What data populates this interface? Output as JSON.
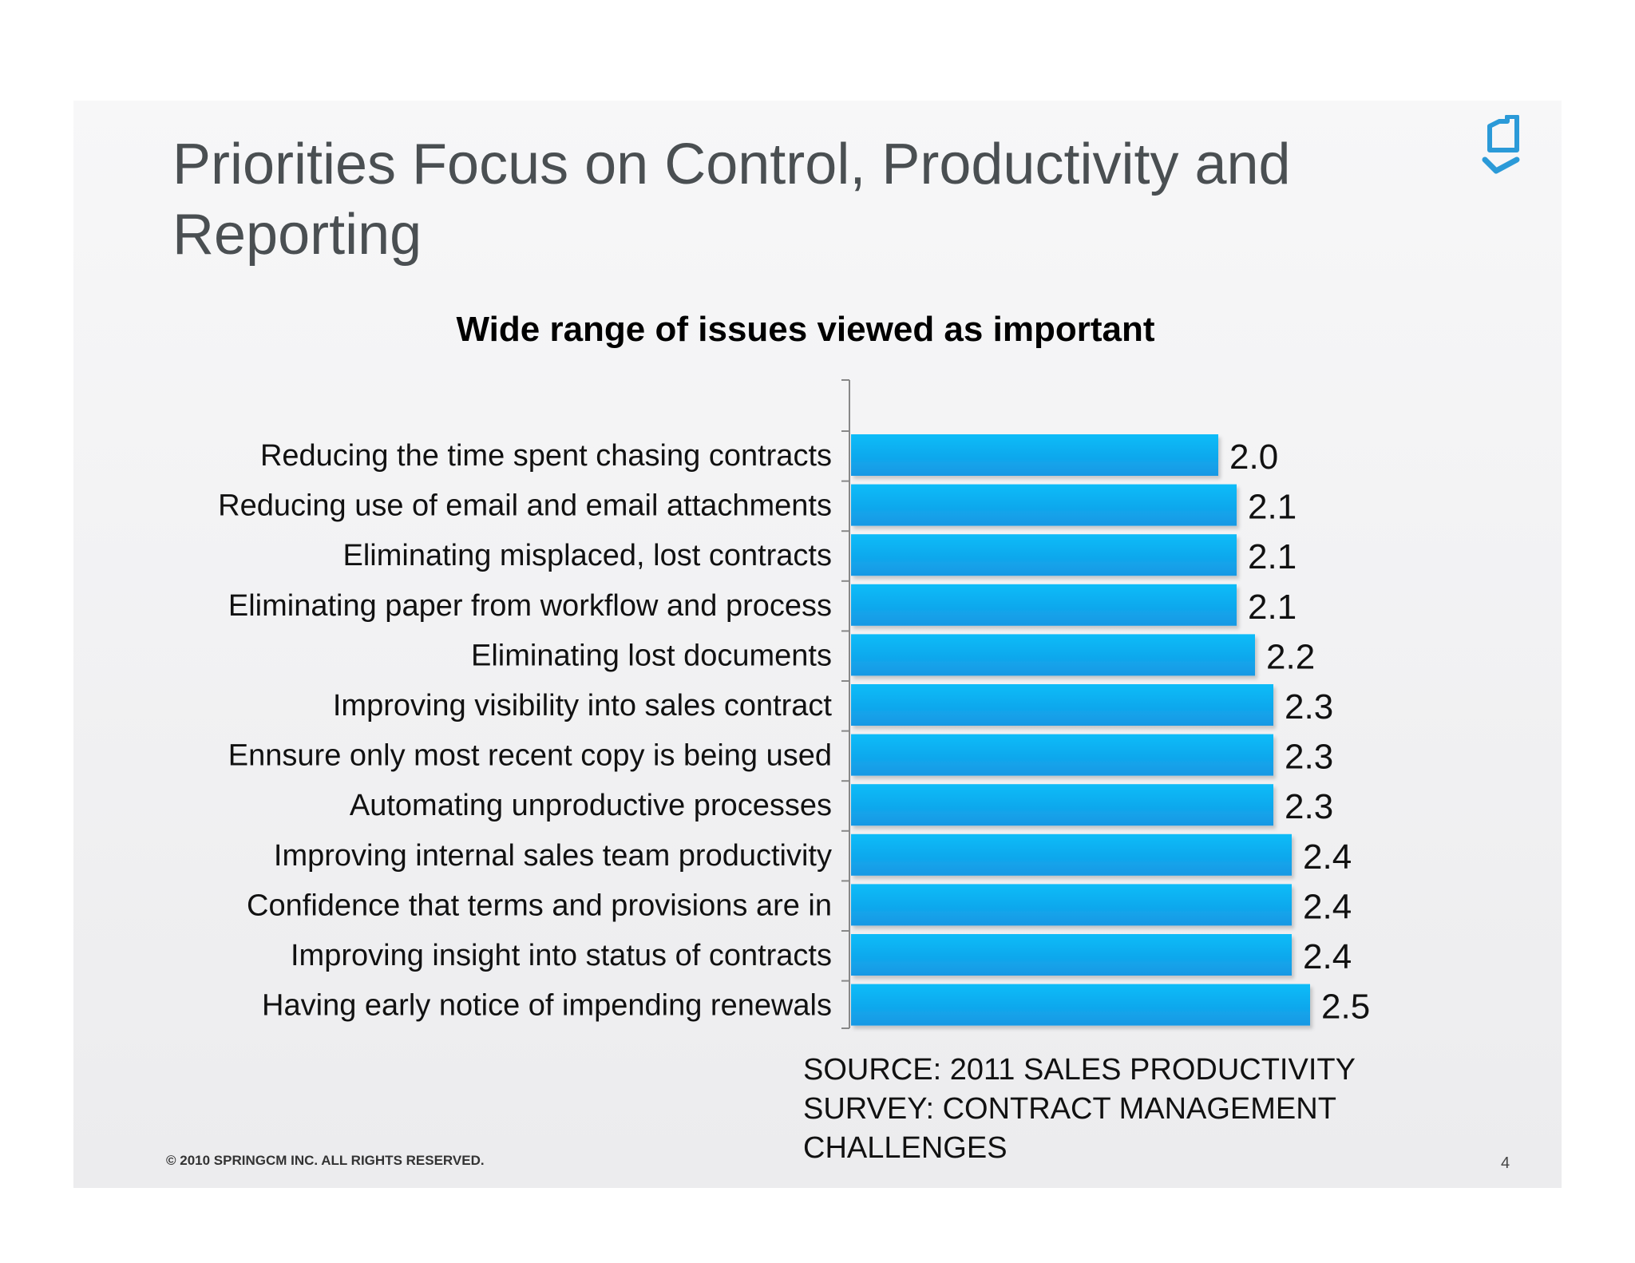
{
  "slide": {
    "title": "Priorities Focus on Control, Productivity and Reporting",
    "source": "SOURCE: 2011 SALES PRODUCTIVITY SURVEY: CONTRACT MANAGEMENT CHALLENGES",
    "copyright": "© 2010 SPRINGCM INC. ALL RIGHTS RESERVED.",
    "page_number": "4",
    "logo_icon": "springcm-logo-icon",
    "accent_color": "#2b9ad8"
  },
  "chart_data": {
    "type": "bar",
    "orientation": "horizontal",
    "title": "Wide range of issues viewed as important",
    "categories": [
      "Reducing the time spent chasing contracts",
      "Reducing use of email and email attachments",
      "Eliminating misplaced, lost contracts",
      "Eliminating paper from workflow and process",
      "Eliminating lost documents",
      "Improving visibility into sales contract",
      "Ennsure only most recent copy is being used",
      "Automating unproductive processes",
      "Improving internal sales team productivity",
      "Confidence that terms and provisions are in",
      "Improving insight into status of  contracts",
      "Having early notice of impending renewals"
    ],
    "values": [
      2.0,
      2.1,
      2.1,
      2.1,
      2.2,
      2.3,
      2.3,
      2.3,
      2.4,
      2.4,
      2.4,
      2.5
    ],
    "value_labels": [
      "2.0",
      "2.1",
      "2.1",
      "2.1",
      "2.2",
      "2.3",
      "2.3",
      "2.3",
      "2.4",
      "2.4",
      "2.4",
      "2.5"
    ],
    "xlim": [
      0,
      2.5
    ],
    "bar_color": "#12aef0",
    "grid": false,
    "legend": "none"
  }
}
